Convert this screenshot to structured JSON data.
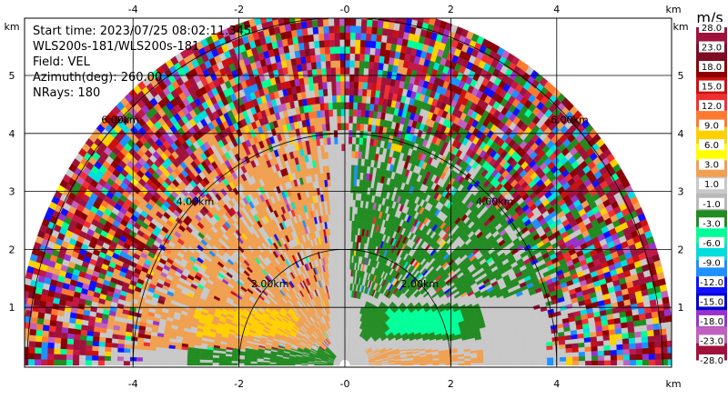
{
  "info": {
    "start_time": "Start time: 2023/07/25 08:02:11.345",
    "instrument": "WLS200s-181/WLS200s-181",
    "field": "Field: VEL",
    "azimuth": "Azimuth(deg): 260.00",
    "nrays": "NRays: 180"
  },
  "chart_data": {
    "type": "heatmap",
    "subtype": "polar-rhi-scan",
    "x_unit_label": "km",
    "y_unit_label": "km",
    "x_ticks": [
      -4,
      -2,
      0,
      2,
      4
    ],
    "x_tick_labels": [
      "-4",
      "-2",
      "-0",
      "2",
      "4"
    ],
    "y_ticks": [
      1,
      2,
      3,
      4,
      5
    ],
    "y_tick_labels": [
      "1",
      "2",
      "3",
      "4",
      "5"
    ],
    "xlim": [
      -6.0,
      6.2
    ],
    "ylim": [
      0,
      6.0
    ],
    "max_range_km": 6.2,
    "range_rings_km": [
      2,
      4,
      6
    ],
    "range_ring_labels": [
      "2.00km",
      "4.00km",
      "6.00km"
    ],
    "grid": true,
    "colorbar": {
      "unit": "m/s",
      "position": "right",
      "tick_labels": [
        "28.0",
        "23.0",
        "18.0",
        "15.0",
        "12.0",
        "9.0",
        "6.0",
        "3.0",
        "1.0",
        "-1.0",
        "-3.0",
        "-6.0",
        "-9.0",
        "-12.0",
        "-15.0",
        "-18.0",
        "-23.0",
        "-28.0"
      ],
      "colors": [
        "#a0123c",
        "#7e0c24",
        "#8c0000",
        "#cc1010",
        "#f03030",
        "#ff7a30",
        "#ffd000",
        "#ffff00",
        "#f0a050",
        "#c8c8c8",
        "#b8b8b8",
        "#228b22",
        "#00ff99",
        "#00dddd",
        "#1e90ff",
        "#1010ff",
        "#0000cc",
        "#9932cc",
        "#c060c0",
        "#a0123c"
      ]
    },
    "features": [
      {
        "description": "Velocity of about -3 m/s near the surface west of the instrument",
        "color_value": -3,
        "x_range": [
          -3.0,
          -0.2
        ],
        "y_range": [
          0.0,
          0.25
        ]
      },
      {
        "description": "Velocity of about 3 to 6 m/s in a layer west of the instrument",
        "color_value": 4,
        "x_range": [
          -3.2,
          -0.5
        ],
        "y_range": [
          0.4,
          1.1
        ]
      },
      {
        "description": "Velocity of about -6 m/s east of the instrument",
        "color_value": -6,
        "x_range": [
          0.8,
          2.5
        ],
        "y_range": [
          0.5,
          1.0
        ]
      },
      {
        "description": "Velocity of about -3 m/s aloft east of the instrument",
        "color_value": -3,
        "x_range": [
          0.2,
          3.5
        ],
        "y_range": [
          1.5,
          4.0
        ]
      },
      {
        "description": "Velocity of about 6 m/s aloft far west",
        "color_value": 6,
        "x_range": [
          -5.8,
          -3.5
        ],
        "y_range": [
          3.0,
          3.4
        ]
      }
    ]
  }
}
